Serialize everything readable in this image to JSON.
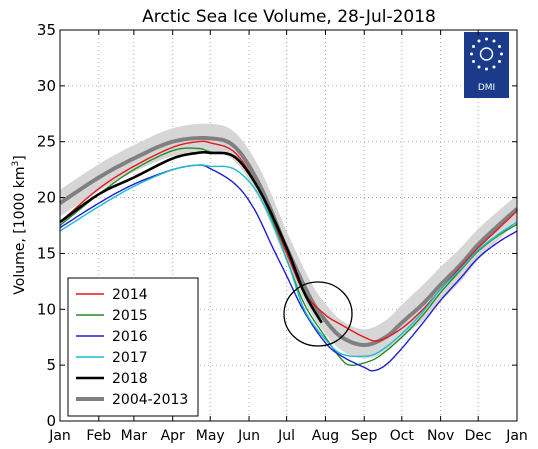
{
  "chart_data": {
    "type": "line",
    "title": "Arctic Sea Ice Volume, 28-Jul-2018",
    "ylabel_main": "Volume, [1000 km",
    "ylabel_sup": "3",
    "ylabel_end": "]",
    "xlabel": "",
    "ylim": [
      0,
      35
    ],
    "xlim": [
      0,
      365
    ],
    "yticks": [
      "0",
      "5",
      "10",
      "15",
      "20",
      "25",
      "30",
      "35"
    ],
    "month_positions": [
      0,
      31,
      59,
      90,
      120,
      151,
      181,
      212,
      243,
      273,
      304,
      334,
      365
    ],
    "month_labels": [
      "Jan",
      "Feb",
      "Mar",
      "Apr",
      "May",
      "Jun",
      "Jul",
      "Aug",
      "Sep",
      "Oct",
      "Nov",
      "Dec",
      "Jan"
    ],
    "grid": true,
    "legend_position": "bottom-left",
    "logo_text": "DMI",
    "annotation": "black circle around late-July 2018 values",
    "band": {
      "name": "2004-2013",
      "days": [
        0,
        31,
        59,
        90,
        120,
        140,
        160,
        181,
        200,
        212,
        225,
        243,
        260,
        273,
        290,
        304,
        320,
        334,
        350,
        365
      ],
      "mean": [
        19.5,
        21.8,
        23.5,
        25.0,
        25.3,
        24.5,
        21.0,
        15.5,
        11.0,
        9.0,
        7.5,
        6.8,
        7.5,
        8.8,
        10.5,
        12.2,
        14.0,
        15.8,
        17.5,
        19.0
      ],
      "upper": [
        20.7,
        23.0,
        24.7,
        26.2,
        26.6,
        25.8,
        22.5,
        17.0,
        12.5,
        10.5,
        9.0,
        8.2,
        9.0,
        10.4,
        12.2,
        13.8,
        15.5,
        17.2,
        18.8,
        20.2
      ],
      "lower": [
        18.3,
        20.6,
        22.3,
        23.7,
        24.1,
        23.2,
        19.7,
        14.2,
        9.8,
        7.8,
        6.3,
        5.6,
        6.2,
        7.5,
        9.0,
        10.7,
        12.5,
        14.4,
        16.2,
        17.8
      ]
    },
    "series": [
      {
        "name": "2014",
        "color": "#e31a1c",
        "days": [
          0,
          31,
          59,
          90,
          110,
          120,
          140,
          160,
          181,
          195,
          212,
          225,
          243,
          255,
          273,
          290,
          304,
          320,
          334,
          350,
          365
        ],
        "values": [
          17.8,
          20.8,
          22.8,
          24.5,
          25.0,
          24.9,
          24.0,
          20.5,
          15.0,
          11.5,
          9.5,
          8.6,
          7.5,
          7.2,
          8.3,
          10.0,
          11.8,
          13.8,
          15.5,
          17.2,
          18.8
        ]
      },
      {
        "name": "2015",
        "color": "#2a8a2a",
        "days": [
          0,
          31,
          59,
          90,
          110,
          120,
          140,
          160,
          181,
          195,
          212,
          225,
          232,
          243,
          255,
          273,
          290,
          304,
          320,
          334,
          350,
          365
        ],
        "values": [
          17.5,
          20.3,
          22.5,
          24.2,
          24.4,
          24.1,
          23.6,
          20.5,
          14.5,
          10.5,
          7.5,
          5.5,
          5.0,
          5.2,
          5.8,
          7.5,
          9.5,
          11.5,
          13.5,
          15.2,
          16.6,
          17.6
        ]
      },
      {
        "name": "2016",
        "color": "#1f1fd6",
        "days": [
          0,
          31,
          59,
          90,
          110,
          120,
          140,
          155,
          170,
          181,
          195,
          212,
          225,
          243,
          250,
          260,
          273,
          290,
          304,
          320,
          334,
          350,
          365
        ],
        "values": [
          17.3,
          19.5,
          21.2,
          22.5,
          22.9,
          22.6,
          21.2,
          19.0,
          15.5,
          13.0,
          9.8,
          7.0,
          5.8,
          4.8,
          4.5,
          5.0,
          6.5,
          8.8,
          10.8,
          12.8,
          14.6,
          16.0,
          17.0
        ]
      },
      {
        "name": "2017",
        "color": "#17becf",
        "days": [
          0,
          31,
          59,
          90,
          110,
          120,
          140,
          160,
          181,
          195,
          212,
          225,
          243,
          255,
          273,
          290,
          304,
          320,
          334,
          350,
          365
        ],
        "values": [
          17.0,
          19.2,
          21.0,
          22.5,
          22.9,
          22.8,
          22.5,
          20.0,
          14.5,
          10.0,
          7.3,
          6.0,
          5.8,
          6.2,
          7.8,
          9.8,
          11.8,
          13.6,
          15.3,
          16.7,
          17.8
        ]
      },
      {
        "name": "2018",
        "color": "#000000",
        "days": [
          0,
          31,
          59,
          90,
          110,
          120,
          140,
          160,
          181,
          195,
          209
        ],
        "values": [
          17.8,
          20.3,
          21.8,
          23.5,
          24.0,
          24.0,
          23.6,
          20.5,
          15.5,
          11.5,
          8.8
        ]
      }
    ],
    "legend": [
      {
        "label": "2014",
        "color": "#e31a1c",
        "width": 1.4
      },
      {
        "label": "2015",
        "color": "#2a8a2a",
        "width": 1.4
      },
      {
        "label": "2016",
        "color": "#1f1fd6",
        "width": 1.4
      },
      {
        "label": "2017",
        "color": "#17becf",
        "width": 1.4
      },
      {
        "label": "2018",
        "color": "#000000",
        "width": 2.6
      },
      {
        "label": "2004-2013",
        "color": "#808080",
        "width": 4
      }
    ]
  }
}
